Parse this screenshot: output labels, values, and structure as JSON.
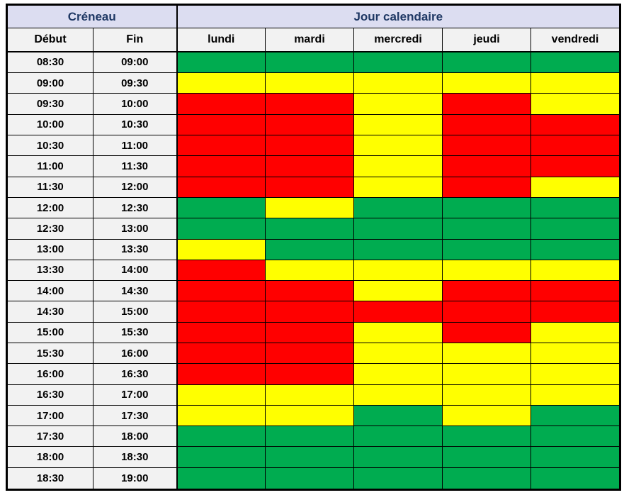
{
  "table": {
    "header_groups": {
      "creneau": "Créneau",
      "jour_calendaire": "Jour calendaire"
    },
    "columns": {
      "debut": "Début",
      "fin": "Fin",
      "days": [
        "lundi",
        "mardi",
        "mercredi",
        "jeudi",
        "vendredi"
      ]
    },
    "colors": {
      "green": "#00AC50",
      "yellow": "#FFFF00",
      "red": "#FF0000",
      "group_header_bg": "#DCDDF1",
      "column_header_bg": "#F2F2F2",
      "header_text": "#1F3864",
      "cell_text": "#000000",
      "border": "#000000"
    },
    "rows": [
      {
        "debut": "08:30",
        "fin": "09:00",
        "slots": [
          "green",
          "green",
          "green",
          "green",
          "green"
        ]
      },
      {
        "debut": "09:00",
        "fin": "09:30",
        "slots": [
          "yellow",
          "yellow",
          "yellow",
          "yellow",
          "yellow"
        ]
      },
      {
        "debut": "09:30",
        "fin": "10:00",
        "slots": [
          "red",
          "red",
          "yellow",
          "red",
          "yellow"
        ]
      },
      {
        "debut": "10:00",
        "fin": "10:30",
        "slots": [
          "red",
          "red",
          "yellow",
          "red",
          "red"
        ]
      },
      {
        "debut": "10:30",
        "fin": "11:00",
        "slots": [
          "red",
          "red",
          "yellow",
          "red",
          "red"
        ]
      },
      {
        "debut": "11:00",
        "fin": "11:30",
        "slots": [
          "red",
          "red",
          "yellow",
          "red",
          "red"
        ]
      },
      {
        "debut": "11:30",
        "fin": "12:00",
        "slots": [
          "red",
          "red",
          "yellow",
          "red",
          "yellow"
        ]
      },
      {
        "debut": "12:00",
        "fin": "12:30",
        "slots": [
          "green",
          "yellow",
          "green",
          "green",
          "green"
        ]
      },
      {
        "debut": "12:30",
        "fin": "13:00",
        "slots": [
          "green",
          "green",
          "green",
          "green",
          "green"
        ]
      },
      {
        "debut": "13:00",
        "fin": "13:30",
        "slots": [
          "yellow",
          "green",
          "green",
          "green",
          "green"
        ]
      },
      {
        "debut": "13:30",
        "fin": "14:00",
        "slots": [
          "red",
          "yellow",
          "yellow",
          "yellow",
          "yellow"
        ]
      },
      {
        "debut": "14:00",
        "fin": "14:30",
        "slots": [
          "red",
          "red",
          "yellow",
          "red",
          "red"
        ]
      },
      {
        "debut": "14:30",
        "fin": "15:00",
        "slots": [
          "red",
          "red",
          "red",
          "red",
          "red"
        ]
      },
      {
        "debut": "15:00",
        "fin": "15:30",
        "slots": [
          "red",
          "red",
          "yellow",
          "red",
          "yellow"
        ]
      },
      {
        "debut": "15:30",
        "fin": "16:00",
        "slots": [
          "red",
          "red",
          "yellow",
          "yellow",
          "yellow"
        ]
      },
      {
        "debut": "16:00",
        "fin": "16:30",
        "slots": [
          "red",
          "red",
          "yellow",
          "yellow",
          "yellow"
        ]
      },
      {
        "debut": "16:30",
        "fin": "17:00",
        "slots": [
          "yellow",
          "yellow",
          "yellow",
          "yellow",
          "yellow"
        ]
      },
      {
        "debut": "17:00",
        "fin": "17:30",
        "slots": [
          "yellow",
          "yellow",
          "green",
          "yellow",
          "green"
        ]
      },
      {
        "debut": "17:30",
        "fin": "18:00",
        "slots": [
          "green",
          "green",
          "green",
          "green",
          "green"
        ]
      },
      {
        "debut": "18:00",
        "fin": "18:30",
        "slots": [
          "green",
          "green",
          "green",
          "green",
          "green"
        ]
      },
      {
        "debut": "18:30",
        "fin": "19:00",
        "slots": [
          "green",
          "green",
          "green",
          "green",
          "green"
        ]
      }
    ]
  }
}
